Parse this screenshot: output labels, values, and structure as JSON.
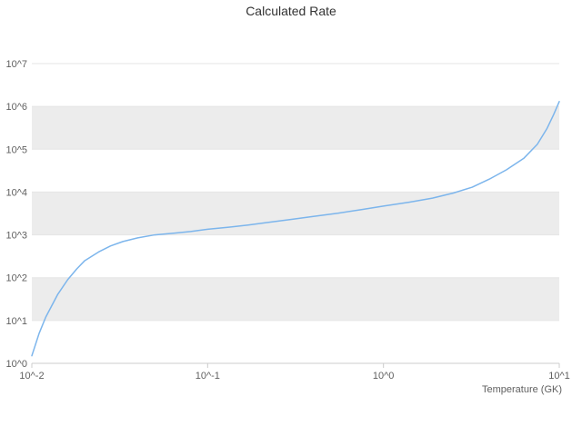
{
  "title": "Calculated Rate",
  "chart_data": {
    "type": "line",
    "title": "Calculated Rate",
    "xlabel": "Temperature (GK)",
    "ylabel": "",
    "x_scale": "log",
    "y_scale": "log",
    "xlim": [
      0.01,
      10
    ],
    "ylim": [
      1,
      10000000
    ],
    "x_tick_labels": [
      "10^-2",
      "10^-1",
      "10^0",
      "10^1"
    ],
    "x_tick_values": [
      0.01,
      0.1,
      1,
      10
    ],
    "y_tick_labels": [
      "10^0",
      "10^1",
      "10^2",
      "10^3",
      "10^4",
      "10^5",
      "10^6",
      "10^7"
    ],
    "y_tick_values": [
      1,
      10,
      100,
      1000,
      10000,
      100000,
      1000000,
      10000000
    ],
    "grid": true,
    "legend": "none",
    "line_color": "#7cb5ec",
    "band_color": "#ececec",
    "grid_color": "#e6e6e6",
    "axis_color": "#cccccc",
    "series": [
      {
        "name": "Calculated Rate",
        "x": [
          0.01,
          0.011,
          0.012,
          0.014,
          0.016,
          0.018,
          0.02,
          0.024,
          0.028,
          0.033,
          0.04,
          0.05,
          0.065,
          0.08,
          0.1,
          0.13,
          0.17,
          0.22,
          0.3,
          0.4,
          0.55,
          0.75,
          1.0,
          1.4,
          1.9,
          2.5,
          3.2,
          4.0,
          5.0,
          6.3,
          7.5,
          8.5,
          9.3,
          10.0
        ],
        "y": [
          1.5,
          5,
          12,
          40,
          90,
          160,
          250,
          400,
          550,
          700,
          850,
          1000,
          1100,
          1200,
          1350,
          1500,
          1700,
          1950,
          2300,
          2700,
          3200,
          3900,
          4700,
          5800,
          7200,
          9500,
          13000,
          20000,
          33000,
          62000,
          130000,
          300000,
          650000,
          1300000
        ]
      }
    ]
  }
}
